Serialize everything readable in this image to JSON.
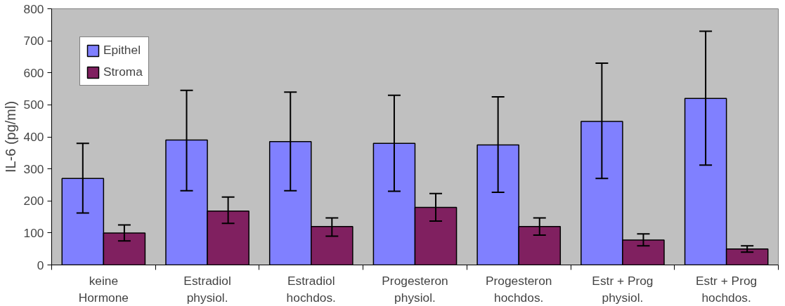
{
  "chart_data": {
    "type": "bar",
    "ylabel": "IL-6 (pg/ml)",
    "categories": [
      "keine\nHormone",
      "Estradiol\nphysiol.",
      "Estradiol\nhochdos.",
      "Progesteron\nphysiol.",
      "Progesteron\nhochdos.",
      "Estr + Prog\nphysiol.",
      "Estr + Prog\nhochdos."
    ],
    "series": [
      {
        "name": "Epithel",
        "color": "#8080ff",
        "values": [
          270,
          390,
          385,
          380,
          375,
          448,
          520
        ],
        "errors": [
          [
            162,
            380
          ],
          [
            232,
            545
          ],
          [
            232,
            540
          ],
          [
            230,
            530
          ],
          [
            227,
            525
          ],
          [
            270,
            630
          ],
          [
            312,
            730
          ]
        ]
      },
      {
        "name": "Stroma",
        "color": "#802060",
        "values": [
          100,
          168,
          120,
          180,
          120,
          78,
          50
        ],
        "errors": [
          [
            75,
            125
          ],
          [
            130,
            212
          ],
          [
            90,
            147
          ],
          [
            137,
            223
          ],
          [
            93,
            147
          ],
          [
            60,
            97
          ],
          [
            40,
            60
          ]
        ]
      }
    ],
    "ylim": [
      0,
      800
    ],
    "yticks": [
      0,
      100,
      200,
      300,
      400,
      500,
      600,
      700,
      800
    ],
    "grid": false,
    "legend": "top left"
  }
}
